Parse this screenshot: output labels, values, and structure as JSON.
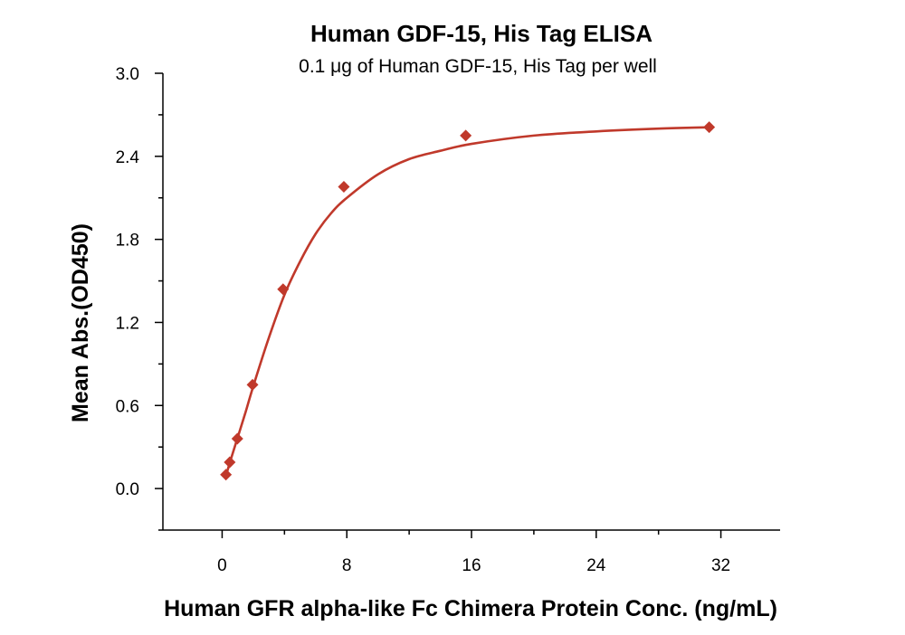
{
  "chart_data": {
    "type": "scatter",
    "title": "Human GDF-15, His Tag ELISA",
    "subtitle": "0.1 μg of Human GDF-15, His Tag per well",
    "xlabel": "Human GFR alpha-like Fc Chimera Protein Conc. (ng/mL)",
    "ylabel": "Mean Abs.(OD450)",
    "xlim": [
      -3.8,
      35.8
    ],
    "ylim": [
      -0.3,
      3.0
    ],
    "x_ticks": [
      0,
      8,
      16,
      24,
      32
    ],
    "x_tick_labels": [
      "0",
      "8",
      "16",
      "24",
      "32"
    ],
    "y_ticks": [
      0.0,
      0.6,
      1.2,
      1.8,
      2.4,
      3.0
    ],
    "y_tick_labels": [
      "0.0",
      "0.6",
      "1.2",
      "1.8",
      "2.4",
      "3.0"
    ],
    "grid": false,
    "legend": "none",
    "series": [
      {
        "marker": "diamond",
        "color": "#c0392b",
        "fit": "sigmoidal",
        "x": [
          0.244,
          0.488,
          0.977,
          1.95,
          3.91,
          7.81,
          15.63,
          31.25
        ],
        "y": [
          0.1,
          0.19,
          0.36,
          0.75,
          1.44,
          2.18,
          2.55,
          2.61
        ]
      }
    ],
    "fit_curve": {
      "x": [
        0.244,
        0.5,
        1.0,
        1.5,
        2.0,
        3.0,
        4.0,
        5.0,
        6.0,
        7.0,
        8.0,
        10.0,
        12.0,
        14.0,
        16.0,
        20.0,
        24.0,
        28.0,
        31.25
      ],
      "y": [
        0.09,
        0.19,
        0.37,
        0.55,
        0.74,
        1.09,
        1.4,
        1.64,
        1.84,
        1.99,
        2.1,
        2.27,
        2.38,
        2.44,
        2.49,
        2.55,
        2.58,
        2.6,
        2.61
      ]
    }
  }
}
